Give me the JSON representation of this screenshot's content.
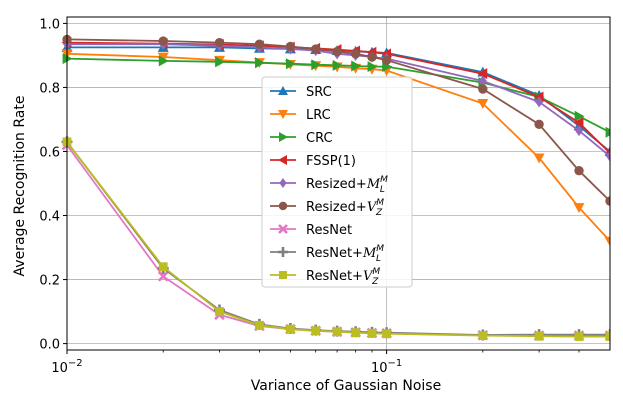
{
  "chart_data": {
    "type": "line",
    "title": "",
    "xlabel": "Variance of Gaussian Noise",
    "ylabel": "Average Recognition Rate",
    "xscale": "log",
    "xlim": [
      0.01,
      0.5
    ],
    "ylim": [
      -0.02,
      1.02
    ],
    "grid": true,
    "legend_position": "center",
    "x_ticks": [
      {
        "value": 0.01,
        "base": "10",
        "exp": "−2"
      },
      {
        "value": 0.1,
        "base": "10",
        "exp": "−1"
      }
    ],
    "y_ticks": [
      {
        "value": 0.0,
        "label": "0.0"
      },
      {
        "value": 0.2,
        "label": "0.2"
      },
      {
        "value": 0.4,
        "label": "0.4"
      },
      {
        "value": 0.6,
        "label": "0.6"
      },
      {
        "value": 0.8,
        "label": "0.8"
      },
      {
        "value": 1.0,
        "label": "1.0"
      }
    ],
    "x": [
      0.01,
      0.02,
      0.03,
      0.04,
      0.05,
      0.06,
      0.07,
      0.08,
      0.09,
      0.1,
      0.2,
      0.3,
      0.4,
      0.5
    ],
    "series": [
      {
        "name": "SRC",
        "color": "#1f77b4",
        "marker": "triangle-up",
        "values": [
          0.925,
          0.925,
          0.925,
          0.922,
          0.92,
          0.918,
          0.915,
          0.913,
          0.91,
          0.908,
          0.848,
          0.775,
          0.68,
          0.6
        ]
      },
      {
        "name": "LRC",
        "color": "#ff7f0e",
        "marker": "triangle-down",
        "values": [
          0.905,
          0.895,
          0.885,
          0.878,
          0.872,
          0.868,
          0.864,
          0.86,
          0.857,
          0.853,
          0.75,
          0.58,
          0.425,
          0.32
        ]
      },
      {
        "name": "CRC",
        "color": "#2ca02c",
        "marker": "triangle-right",
        "values": [
          0.89,
          0.883,
          0.88,
          0.877,
          0.874,
          0.871,
          0.869,
          0.867,
          0.865,
          0.865,
          0.815,
          0.77,
          0.71,
          0.66
        ]
      },
      {
        "name": "FSSP(1)",
        "color": "#d62728",
        "marker": "triangle-left",
        "values": [
          0.94,
          0.937,
          0.934,
          0.93,
          0.926,
          0.922,
          0.918,
          0.914,
          0.91,
          0.905,
          0.843,
          0.77,
          0.69,
          0.595
        ]
      },
      {
        "name": "Resized+M_L^M",
        "color": "#9467bd",
        "marker": "diamond",
        "label_base": "Resized+",
        "label_sym": "M",
        "label_sup": "M",
        "label_sub": "L",
        "values": [
          0.935,
          0.935,
          0.93,
          0.925,
          0.92,
          0.915,
          0.905,
          0.9,
          0.895,
          0.89,
          0.82,
          0.755,
          0.665,
          0.585
        ]
      },
      {
        "name": "Resized+V_Z^M",
        "color": "#8c564b",
        "marker": "circle",
        "label_base": "Resized+",
        "label_sym": "V",
        "label_sup": "M",
        "label_sub": "Z",
        "values": [
          0.95,
          0.945,
          0.94,
          0.935,
          0.928,
          0.92,
          0.912,
          0.905,
          0.895,
          0.885,
          0.795,
          0.685,
          0.54,
          0.445
        ]
      },
      {
        "name": "ResNet",
        "color": "#e377c2",
        "marker": "x",
        "values": [
          0.62,
          0.21,
          0.09,
          0.055,
          0.045,
          0.04,
          0.037,
          0.035,
          0.033,
          0.032,
          0.026,
          0.025,
          0.025,
          0.025
        ]
      },
      {
        "name": "ResNet+M_L^M",
        "color": "#7f7f7f",
        "marker": "plus",
        "label_base": "ResNet+",
        "label_sym": "M",
        "label_sup": "M",
        "label_sub": "L",
        "values": [
          0.63,
          0.235,
          0.105,
          0.06,
          0.047,
          0.042,
          0.039,
          0.037,
          0.035,
          0.034,
          0.027,
          0.028,
          0.028,
          0.028
        ]
      },
      {
        "name": "ResNet+V_Z^M",
        "color": "#bcbd22",
        "marker": "square",
        "label_base": "ResNet+",
        "label_sym": "V",
        "label_sup": "M",
        "label_sub": "Z",
        "values": [
          0.63,
          0.24,
          0.1,
          0.057,
          0.045,
          0.04,
          0.037,
          0.034,
          0.032,
          0.031,
          0.025,
          0.023,
          0.022,
          0.022
        ]
      }
    ]
  }
}
